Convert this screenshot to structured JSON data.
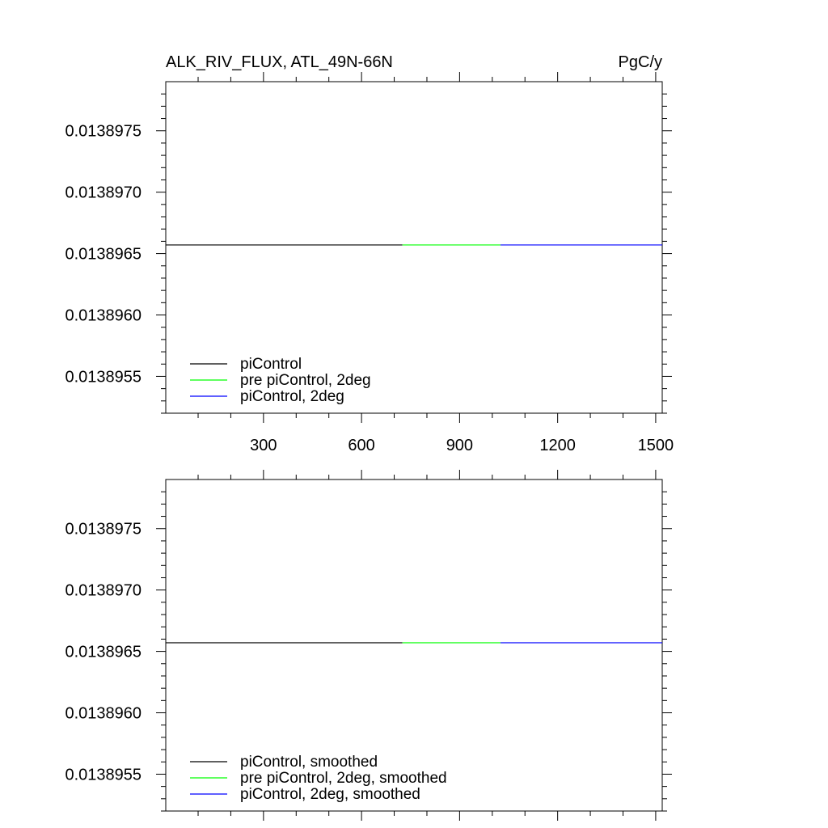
{
  "header": {
    "title": "ALK_RIV_FLUX, ATL_49N-66N",
    "units": "PgC/y"
  },
  "colors": {
    "piControl": "#000000",
    "pre_piControl_2deg": "#00ff00",
    "piControl_2deg": "#0000ff"
  },
  "chart_data": [
    {
      "type": "line",
      "title": "ALK_RIV_FLUX, ATL_49N-66N",
      "units": "PgC/y",
      "xlim": [
        1,
        1520
      ],
      "ylim": [
        0.0138952,
        0.0138979
      ],
      "x_ticks": [
        300,
        600,
        900,
        1200,
        1500
      ],
      "x_tick_labels": [
        "300",
        "600",
        "900",
        "1200",
        "1500"
      ],
      "y_ticks": [
        0.0138955,
        0.013896,
        0.0138965,
        0.013897,
        0.0138975
      ],
      "y_tick_labels": [
        "0.0138955",
        "0.0138960",
        "0.0138965",
        "0.0138970",
        "0.0138975"
      ],
      "legend_position": "bottom-left",
      "series": [
        {
          "name": "piControl",
          "color": "#000000",
          "x": [
            1,
            725
          ],
          "y": [
            0.01389657,
            0.01389657
          ]
        },
        {
          "name": "pre piControl, 2deg",
          "color": "#00ff00",
          "x": [
            725,
            1025
          ],
          "y": [
            0.01389657,
            0.01389657
          ]
        },
        {
          "name": "piControl, 2deg",
          "color": "#0000ff",
          "x": [
            1025,
            1520
          ],
          "y": [
            0.01389657,
            0.01389657
          ]
        }
      ]
    },
    {
      "type": "line",
      "xlim": [
        1,
        1520
      ],
      "ylim": [
        0.0138952,
        0.0138979
      ],
      "x_ticks": [
        300,
        600,
        900,
        1200,
        1500
      ],
      "y_ticks": [
        0.0138955,
        0.013896,
        0.0138965,
        0.013897,
        0.0138975
      ],
      "y_tick_labels": [
        "0.0138955",
        "0.0138960",
        "0.0138965",
        "0.0138970",
        "0.0138975"
      ],
      "legend_position": "bottom-left",
      "series": [
        {
          "name": "piControl, smoothed",
          "color": "#000000",
          "x": [
            1,
            725
          ],
          "y": [
            0.01389657,
            0.01389657
          ]
        },
        {
          "name": "pre piControl, 2deg, smoothed",
          "color": "#00ff00",
          "x": [
            725,
            1025
          ],
          "y": [
            0.01389657,
            0.01389657
          ]
        },
        {
          "name": "piControl, 2deg, smoothed",
          "color": "#0000ff",
          "x": [
            1025,
            1520
          ],
          "y": [
            0.01389657,
            0.01389657
          ]
        }
      ]
    }
  ]
}
